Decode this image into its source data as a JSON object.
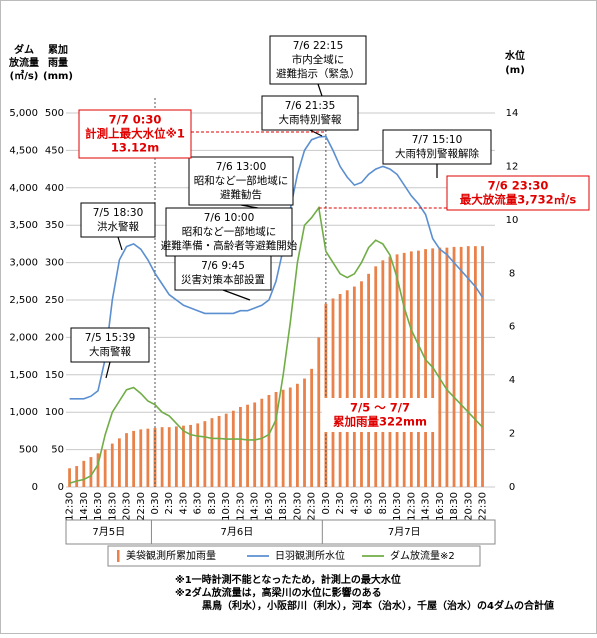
{
  "chart_data": {
    "type": "combo",
    "y_label": [
      "ダム",
      "放流量",
      "(㎥/s)"
    ],
    "rain_label": [
      "累加",
      "雨量",
      "(mm)"
    ],
    "y2_label": [
      "水位",
      "(m)"
    ],
    "categories": [
      "12:30",
      null,
      "14:30",
      null,
      "16:30",
      null,
      "18:30",
      null,
      "20:30",
      null,
      "22:30",
      null,
      "0:30",
      null,
      "2:30",
      null,
      "4:30",
      null,
      "6:30",
      null,
      "8:30",
      null,
      "10:30",
      null,
      "12:30",
      null,
      "14:30",
      null,
      "16:30",
      null,
      "18:30",
      null,
      "20:30",
      null,
      "22:30",
      null,
      "0:30",
      null,
      "2:30",
      null,
      "4:30",
      null,
      "6:30",
      null,
      "8:30",
      null,
      "10:30",
      null,
      "12:30",
      null,
      "14:30",
      null,
      "16:30",
      null,
      "18:30",
      null,
      "20:30",
      null,
      "22:30"
    ],
    "day_labels": [
      "7月5日",
      "7月6日",
      "7月7日"
    ],
    "series": [
      {
        "name": "美袋観測所累加雨量",
        "type": "bar",
        "axis": "rain",
        "color": "#e8824a",
        "values": [
          25,
          28,
          35,
          40,
          45,
          50,
          58,
          65,
          72,
          75,
          77,
          78,
          79,
          80,
          80,
          81,
          82,
          83,
          85,
          88,
          92,
          95,
          98,
          102,
          107,
          110,
          113,
          118,
          123,
          127,
          130,
          133,
          138,
          145,
          158,
          200,
          245,
          252,
          258,
          263,
          268,
          275,
          285,
          295,
          303,
          308,
          311,
          313,
          315,
          316,
          318,
          319,
          320,
          320,
          321,
          321,
          322,
          322,
          322
        ]
      },
      {
        "name": "日羽観測所水位",
        "type": "line",
        "axis": "y2",
        "color": "#5b8fd0",
        "values": [
          3.3,
          3.3,
          3.3,
          3.4,
          3.6,
          4.8,
          7.0,
          8.5,
          9.0,
          9.1,
          8.9,
          8.5,
          8.0,
          7.6,
          7.2,
          7.0,
          6.8,
          6.7,
          6.6,
          6.5,
          6.5,
          6.5,
          6.5,
          6.5,
          6.6,
          6.6,
          6.7,
          6.8,
          7.0,
          7.7,
          8.9,
          10.4,
          11.7,
          12.6,
          13.0,
          13.1,
          13.12,
          12.6,
          12.0,
          11.6,
          11.3,
          11.4,
          11.7,
          11.9,
          12.0,
          11.9,
          11.7,
          11.3,
          10.9,
          10.6,
          10.2,
          9.3,
          8.9,
          8.7,
          8.4,
          8.1,
          7.8,
          7.5,
          7.1
        ]
      },
      {
        "name": "ダム放流量※2",
        "type": "line",
        "axis": "y",
        "color": "#70ad47",
        "values": [
          50,
          80,
          100,
          150,
          300,
          700,
          1000,
          1150,
          1300,
          1330,
          1250,
          1150,
          1100,
          1000,
          950,
          850,
          750,
          700,
          680,
          670,
          650,
          650,
          640,
          640,
          640,
          630,
          630,
          650,
          700,
          900,
          1500,
          2200,
          3000,
          3500,
          3600,
          3732,
          3150,
          3000,
          2850,
          2800,
          2850,
          3000,
          3200,
          3300,
          3250,
          3100,
          2800,
          2400,
          2100,
          1900,
          1700,
          1600,
          1450,
          1300,
          1200,
          1100,
          1000,
          900,
          800
        ]
      }
    ],
    "ylim": [
      0,
      5000
    ],
    "yticks": [
      0,
      500,
      {
        "value": 1000,
        "label": "1,000"
      },
      {
        "value": 1500,
        "label": "1,500"
      },
      {
        "value": 2000,
        "label": "2,000"
      },
      {
        "value": 2500,
        "label": "2,500"
      },
      {
        "value": 3000,
        "label": "3,000"
      },
      {
        "value": 3500,
        "label": "3,500"
      },
      {
        "value": 4000,
        "label": "4,000"
      },
      {
        "value": 4500,
        "label": "4,500"
      },
      {
        "value": 5000,
        "label": "5,000"
      }
    ],
    "rain_lim": [
      0,
      500
    ],
    "rain_ticks": [
      0,
      50,
      100,
      150,
      200,
      250,
      300,
      350,
      400,
      450,
      500
    ],
    "y2lim": [
      0,
      14
    ],
    "y2ticks": [
      0,
      2,
      4,
      6,
      8,
      10,
      12,
      14
    ],
    "grid": true,
    "annotations": [
      {
        "lines": [
          "7/6 22:15",
          "市内全域に",
          "避難指示（緊急）"
        ],
        "style": "box"
      },
      {
        "lines": [
          "7/6 21:35",
          "大雨特別警報"
        ],
        "style": "box"
      },
      {
        "lines": [
          "7/6 13:00",
          "昭和など一部地域に",
          "避難勧告"
        ],
        "style": "box"
      },
      {
        "lines": [
          "7/6 10:00",
          "昭和など一部地域に",
          "避難準備・高齢者等避難開始"
        ],
        "style": "box"
      },
      {
        "lines": [
          "7/6 9:45",
          "災害対策本部設置"
        ],
        "style": "box"
      },
      {
        "lines": [
          "7/5 18:30",
          "洪水警報"
        ],
        "style": "box"
      },
      {
        "lines": [
          "7/5 15:39",
          "大雨警報"
        ],
        "style": "box"
      },
      {
        "lines": [
          "7/7 15:10",
          "大雨特別警報解除"
        ],
        "style": "box"
      },
      {
        "lines": [
          "7/7 0:30",
          "計測上最大水位※1",
          "13.12m"
        ],
        "style": "red"
      },
      {
        "lines": [
          "7/6 23:30",
          "最大放流量3,732㎥/s"
        ],
        "style": "red"
      },
      {
        "lines": [
          "7/5 ～ 7/7",
          "累加雨量322mm"
        ],
        "style": "red-plain"
      }
    ],
    "notes": [
      "※1一時計測不能となったため，計測上の最大水位",
      "※2ダム放流量は，高梁川の水位に影響のある",
      "黒鳥（利水），小阪部川（利水），河本（治水），千屋（治水）の4ダムの合計値"
    ]
  }
}
